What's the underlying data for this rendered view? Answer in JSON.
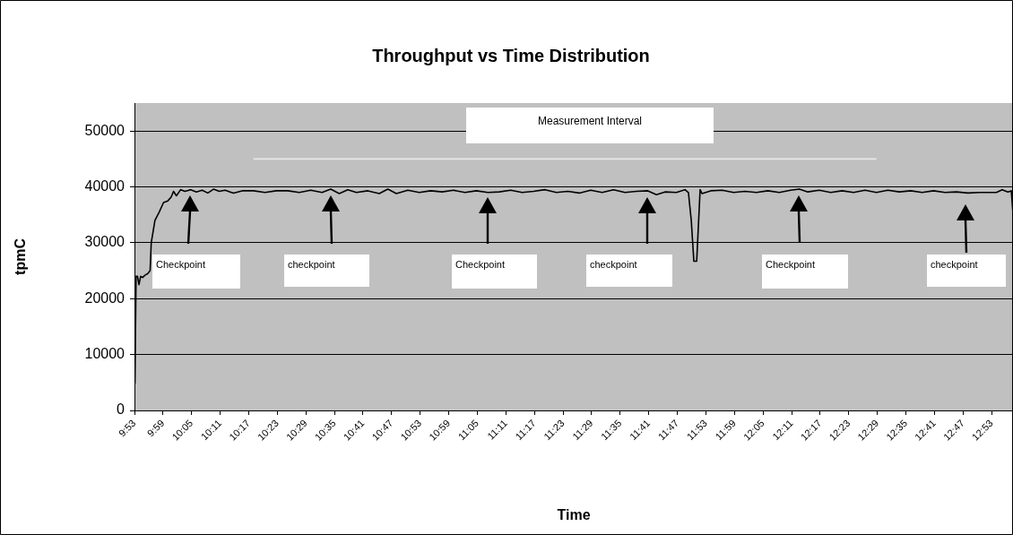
{
  "chart_data": {
    "type": "line",
    "title": "Throughput vs Time Distribution",
    "xlabel": "Time",
    "ylabel": "tpmC",
    "xlim": [
      9.8833,
      12.958
    ],
    "ylim": [
      0,
      55000
    ],
    "xticks": [
      {
        "value": 9.8833,
        "label": "9:53"
      },
      {
        "value": 9.9833,
        "label": "9:59"
      },
      {
        "value": 10.0833,
        "label": "10:05"
      },
      {
        "value": 10.1833,
        "label": "10:11"
      },
      {
        "value": 10.2833,
        "label": "10:17"
      },
      {
        "value": 10.3833,
        "label": "10:23"
      },
      {
        "value": 10.4833,
        "label": "10:29"
      },
      {
        "value": 10.5833,
        "label": "10:35"
      },
      {
        "value": 10.6833,
        "label": "10:41"
      },
      {
        "value": 10.7833,
        "label": "10:47"
      },
      {
        "value": 10.8833,
        "label": "10:53"
      },
      {
        "value": 10.9833,
        "label": "10:59"
      },
      {
        "value": 11.0833,
        "label": "11:05"
      },
      {
        "value": 11.1833,
        "label": "11:11"
      },
      {
        "value": 11.2833,
        "label": "11:17"
      },
      {
        "value": 11.3833,
        "label": "11:23"
      },
      {
        "value": 11.4833,
        "label": "11:29"
      },
      {
        "value": 11.5833,
        "label": "11:35"
      },
      {
        "value": 11.6833,
        "label": "11:41"
      },
      {
        "value": 11.7833,
        "label": "11:47"
      },
      {
        "value": 11.8833,
        "label": "11:53"
      },
      {
        "value": 11.9833,
        "label": "11:59"
      },
      {
        "value": 12.0833,
        "label": "12:05"
      },
      {
        "value": 12.1833,
        "label": "12:11"
      },
      {
        "value": 12.2833,
        "label": "12:17"
      },
      {
        "value": 12.3833,
        "label": "12:23"
      },
      {
        "value": 12.4833,
        "label": "12:29"
      },
      {
        "value": 12.5833,
        "label": "12:35"
      },
      {
        "value": 12.6833,
        "label": "12:41"
      },
      {
        "value": 12.7833,
        "label": "12:47"
      },
      {
        "value": 12.8833,
        "label": "12:53"
      }
    ],
    "yticks": [
      0,
      10000,
      20000,
      30000,
      40000,
      50000
    ],
    "grid": "y",
    "legend": false,
    "marker": "none",
    "line_style": "solid",
    "series": [
      {
        "color": "#000000",
        "x": [
          9.885,
          9.889,
          9.894,
          9.899,
          9.905,
          9.912,
          9.92,
          9.93,
          9.938,
          9.942,
          9.955,
          9.97,
          9.985,
          10.0,
          10.012,
          10.02,
          10.03,
          10.045,
          10.06,
          10.08,
          10.1,
          10.12,
          10.14,
          10.16,
          10.18,
          10.2,
          10.23,
          10.26,
          10.3,
          10.34,
          10.38,
          10.42,
          10.46,
          10.5,
          10.54,
          10.57,
          10.6,
          10.63,
          10.66,
          10.7,
          10.74,
          10.77,
          10.8,
          10.84,
          10.88,
          10.92,
          10.96,
          11.0,
          11.04,
          11.08,
          11.12,
          11.16,
          11.2,
          11.24,
          11.28,
          11.32,
          11.36,
          11.4,
          11.44,
          11.48,
          11.52,
          11.56,
          11.6,
          11.64,
          11.68,
          11.71,
          11.74,
          11.78,
          11.81,
          11.822,
          11.832,
          11.841,
          11.851,
          11.863,
          11.87,
          11.9,
          11.94,
          11.98,
          12.02,
          12.06,
          12.1,
          12.14,
          12.18,
          12.21,
          12.24,
          12.28,
          12.32,
          12.36,
          12.4,
          12.44,
          12.48,
          12.52,
          12.56,
          12.6,
          12.64,
          12.68,
          12.72,
          12.76,
          12.8,
          12.84,
          12.88,
          12.9,
          12.92,
          12.94,
          12.952,
          12.958
        ],
        "values": [
          4800,
          24000,
          24000,
          22500,
          24000,
          23800,
          24200,
          24500,
          25000,
          30000,
          34000,
          35500,
          37200,
          37500,
          38200,
          39200,
          38400,
          39500,
          39200,
          39500,
          39100,
          39400,
          38900,
          39600,
          39200,
          39400,
          38900,
          39300,
          39300,
          39000,
          39300,
          39300,
          39000,
          39400,
          39000,
          39600,
          38800,
          39500,
          39000,
          39300,
          38800,
          39600,
          38800,
          39400,
          39000,
          39300,
          39100,
          39400,
          39000,
          39300,
          39000,
          39100,
          39400,
          39000,
          39200,
          39500,
          39000,
          39200,
          38900,
          39400,
          39000,
          39500,
          39000,
          39200,
          39300,
          38600,
          39100,
          39000,
          39500,
          39000,
          34000,
          26700,
          26700,
          39500,
          38800,
          39300,
          39400,
          39000,
          39200,
          39000,
          39300,
          39000,
          39400,
          39600,
          39100,
          39400,
          39000,
          39300,
          39000,
          39400,
          39000,
          39400,
          39100,
          39300,
          39000,
          39300,
          39000,
          39100,
          38900,
          39000,
          39000,
          39000,
          39500,
          39100,
          39300,
          35200
        ]
      },
      {
        "color": "#e8e8e8",
        "x": [
          10.3,
          12.48
        ],
        "values": [
          45000,
          45000
        ]
      }
    ],
    "annotations": [
      "Measurement Interval",
      "Checkpoint",
      "checkpoint",
      "Checkpoint",
      "checkpoint",
      "Checkpoint",
      "checkpoint"
    ]
  }
}
